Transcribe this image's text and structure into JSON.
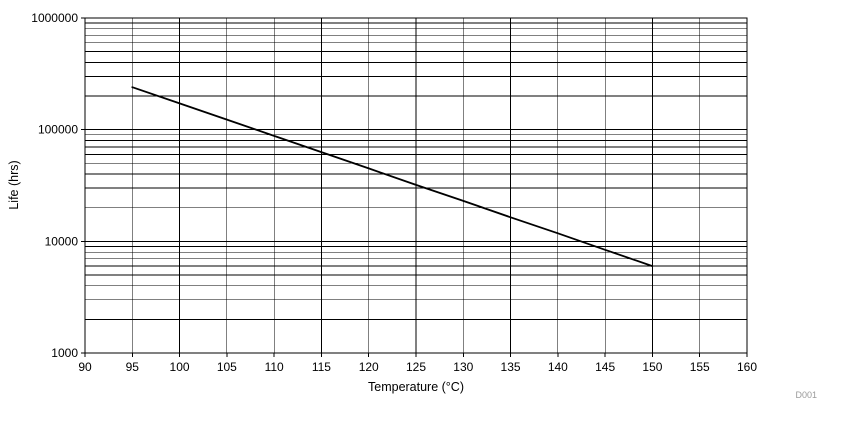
{
  "chart_data": {
    "type": "line",
    "title": "",
    "xlabel": "Temperature (°C)",
    "ylabel": "Life (hrs)",
    "watermark": "D001",
    "grid": "major-and-minor",
    "grid_color": "#000000",
    "x_axis": {
      "min": 90,
      "max": 160,
      "tick_step": 5,
      "ticks": [
        90,
        95,
        100,
        105,
        110,
        115,
        120,
        125,
        130,
        135,
        140,
        145,
        150,
        155,
        160
      ]
    },
    "y_axis": {
      "scale": "log",
      "min": 1000,
      "max": 1000000,
      "ticks": [
        1000,
        10000,
        100000,
        1000000
      ],
      "tick_labels": [
        "1000",
        "10000",
        "100000",
        "1000000"
      ]
    },
    "series": [
      {
        "name": "Life",
        "color": "#000000",
        "points": [
          [
            95,
            240000
          ],
          [
            100,
            172000
          ],
          [
            105,
            123000
          ],
          [
            110,
            88000
          ],
          [
            115,
            63000
          ],
          [
            120,
            45000
          ],
          [
            125,
            32000
          ],
          [
            130,
            23000
          ],
          [
            135,
            16400
          ],
          [
            140,
            11800
          ],
          [
            145,
            8400
          ],
          [
            150,
            6000
          ]
        ]
      }
    ]
  }
}
